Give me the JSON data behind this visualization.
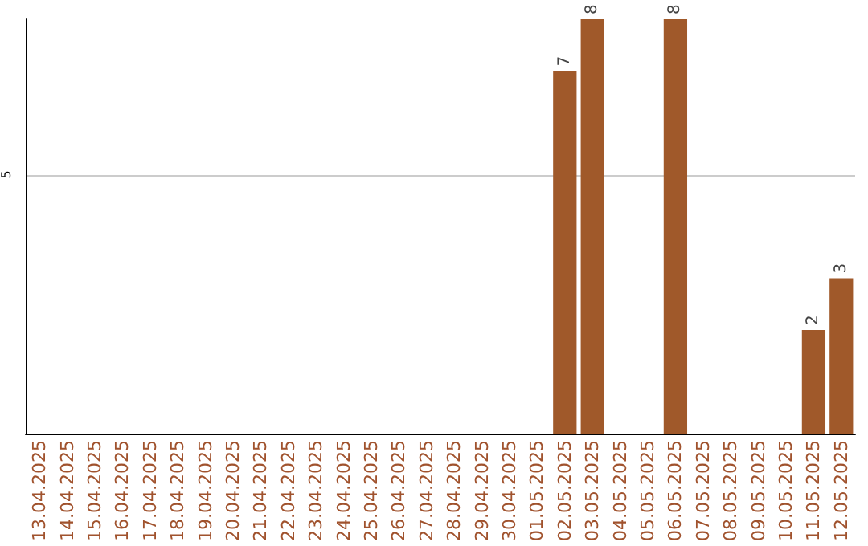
{
  "chart_data": {
    "type": "bar",
    "categories": [
      "13.04.2025",
      "14.04.2025",
      "15.04.2025",
      "16.04.2025",
      "17.04.2025",
      "18.04.2025",
      "19.04.2025",
      "20.04.2025",
      "21.04.2025",
      "22.04.2025",
      "23.04.2025",
      "24.04.2025",
      "25.04.2025",
      "26.04.2025",
      "27.04.2025",
      "28.04.2025",
      "29.04.2025",
      "30.04.2025",
      "01.05.2025",
      "02.05.2025",
      "03.05.2025",
      "04.05.2025",
      "05.05.2025",
      "06.05.2025",
      "07.05.2025",
      "08.05.2025",
      "09.05.2025",
      "10.05.2025",
      "11.05.2025",
      "12.05.2025"
    ],
    "values": [
      null,
      null,
      null,
      null,
      null,
      null,
      null,
      null,
      null,
      null,
      null,
      null,
      null,
      null,
      null,
      null,
      null,
      null,
      null,
      7,
      8,
      null,
      null,
      8,
      null,
      null,
      null,
      null,
      2,
      3
    ],
    "data_labels": true,
    "color": "#a0592a",
    "ylim": [
      0,
      8
    ],
    "yticks": [
      {
        "value": 0,
        "label": null
      },
      5
    ],
    "grid": "y"
  }
}
